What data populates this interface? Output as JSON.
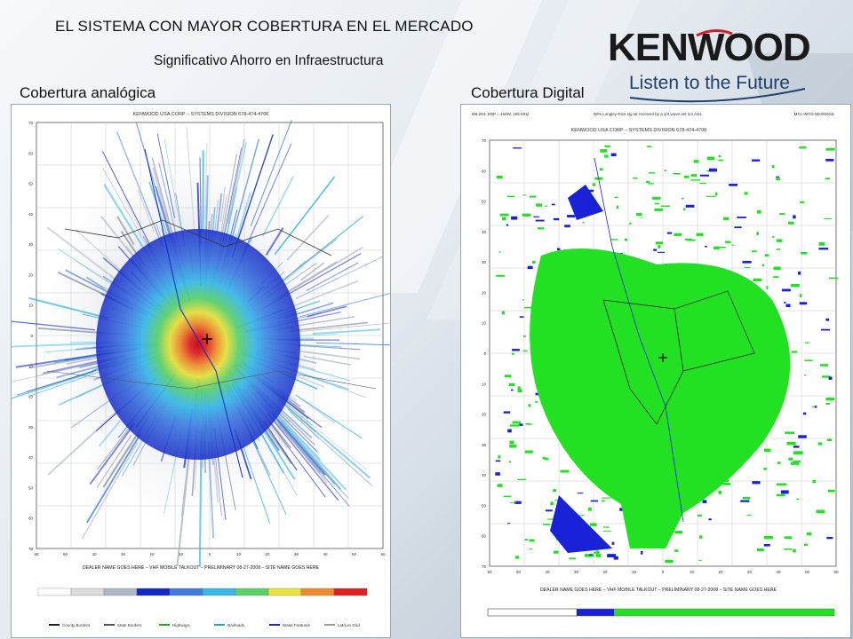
{
  "slide": {
    "title": "EL SISTEMA CON MAYOR COBERTURA EN EL MERCADO",
    "subtitle": "Significativo Ahorro en Infraestructura",
    "label_left": "Cobertura analógica",
    "label_right": "Cobertura Digital"
  },
  "logo": {
    "brand": "KENWOOD",
    "tagline": "Listen to the Future",
    "accent": "#d0202a"
  },
  "map_analog": {
    "header": "KENWOOD USA CORP – SYSTEMS DIVISION   678-474-4700",
    "footer": "DEALER NAME GOES HERE – VHF MOBILE TALKOUT – PRELIMINARY 08-27-2008 – SITE NAME GOES HERE",
    "legend_items": [
      "County Borders",
      "State Borders",
      "Highways",
      "Railroads",
      "Water Features",
      "Lat/Lon Grid"
    ],
    "colors": [
      "#1428c8",
      "#3f7be0",
      "#38b8e8",
      "#5ad26a",
      "#e8e23a",
      "#f08a2a",
      "#e02020"
    ]
  },
  "map_digital": {
    "header_left": "DB-284: ERP = 160W; 155 MHz",
    "header_mid": "90% Longley-Rice sig str received by a 1/4 wave ant 1m AGL",
    "header_right": "MTA-IMTO-NEXEDGE",
    "header": "KENWOOD USA CORP – SYSTEMS DIVISION   678-474-4700",
    "footer": "DEALER NAME GOES HERE – VHF MOBILE TALKOUT – PRELIMINARY 08-27-2008 – SITE NAME GOES HERE",
    "colors": [
      "#1a22d8",
      "#22e022"
    ]
  }
}
